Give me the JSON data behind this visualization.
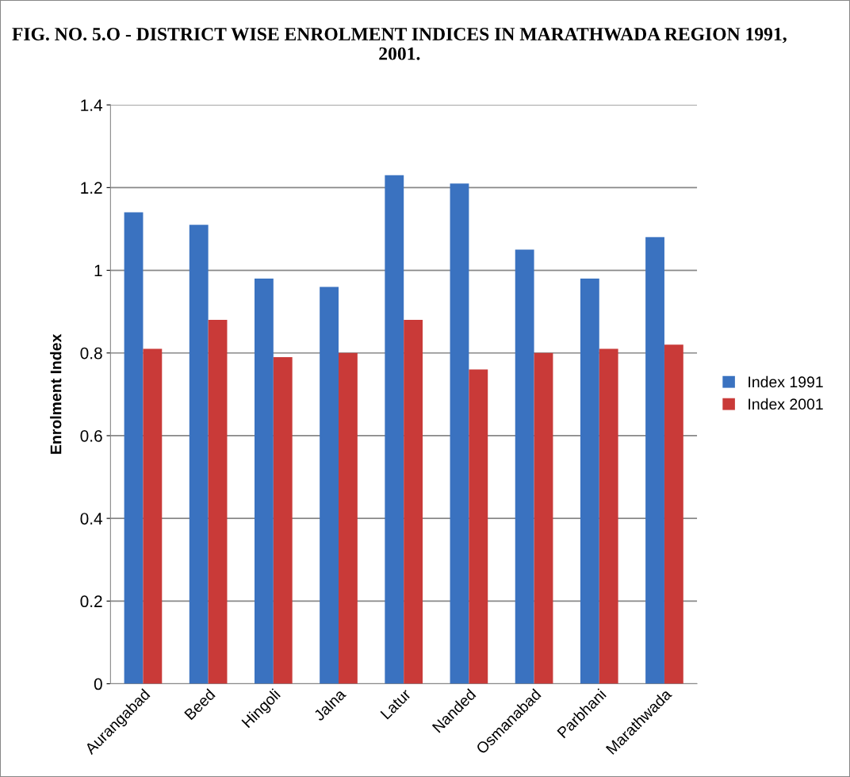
{
  "chart_data": {
    "type": "bar",
    "title": "FIG. NO. 5.O - DISTRICT WISE ENROLMENT INDICES IN MARATHWADA REGION 1991, 2001.",
    "ylabel": "Enrolment Index",
    "categories": [
      "Aurangabad",
      "Beed",
      "Hingoli",
      "Jalna",
      "Latur",
      "Nanded",
      "Osmanabad",
      "Parbhani",
      "Marathwada"
    ],
    "series": [
      {
        "name": "Index 1991",
        "color": "#3a72c0",
        "values": [
          1.14,
          1.11,
          0.98,
          0.96,
          1.23,
          1.21,
          1.05,
          0.98,
          1.08
        ]
      },
      {
        "name": "Index 2001",
        "color": "#c93a38",
        "values": [
          0.81,
          0.88,
          0.79,
          0.8,
          0.88,
          0.76,
          0.8,
          0.81,
          0.82
        ]
      }
    ],
    "ylim": [
      0,
      1.4
    ],
    "yticks": [
      0,
      {
        "value": 0.2,
        "label": "0.2"
      },
      {
        "value": 0.4,
        "label": "0.4"
      },
      {
        "value": 0.6,
        "label": "0.6"
      },
      {
        "value": 0.8,
        "label": "0.8"
      },
      1,
      {
        "value": 1.2,
        "label": "1.2"
      },
      {
        "value": 1.4,
        "label": "1.4"
      }
    ],
    "grid": "y",
    "legend": "right"
  }
}
